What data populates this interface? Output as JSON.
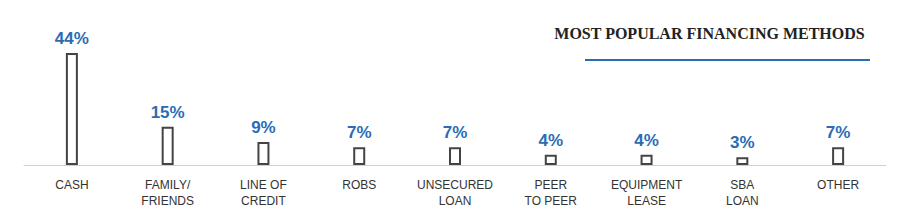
{
  "chart_data": {
    "type": "bar",
    "title": "MOST POPULAR FINANCING METHODS",
    "categories": [
      "CASH",
      "FAMILY/\nFRIENDS",
      "LINE OF\nCREDIT",
      "ROBS",
      "UNSECURED\nLOAN",
      "PEER\nTO PEER",
      "EQUIPMENT\nLEASE",
      "SBA\nLOAN",
      "OTHER"
    ],
    "values": [
      44,
      15,
      9,
      7,
      7,
      4,
      4,
      3,
      7
    ],
    "value_labels": [
      "44%",
      "15%",
      "9%",
      "7%",
      "7%",
      "4%",
      "4%",
      "3%",
      "7%"
    ],
    "color": "#444444",
    "ylim": [
      0,
      44
    ],
    "data_labels": true,
    "tick_labels": "x",
    "grid": false
  }
}
